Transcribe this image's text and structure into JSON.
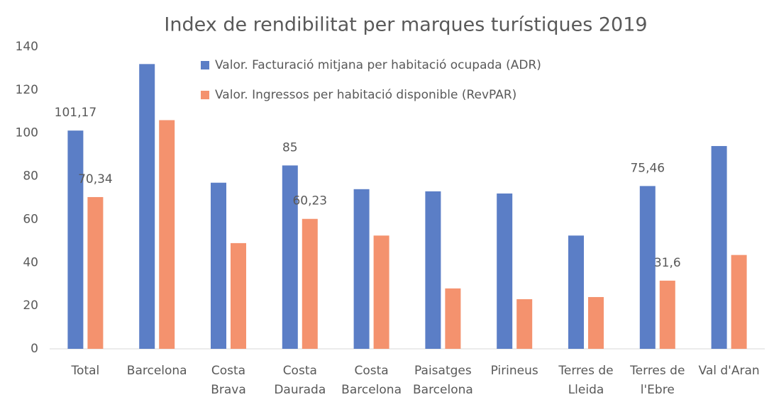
{
  "chart_data": {
    "type": "bar",
    "title": "Index de rendibilitat per marques turístiques 2019",
    "categories": [
      [
        "Total"
      ],
      [
        "Barcelona"
      ],
      [
        "Costa",
        "Brava"
      ],
      [
        "Costa",
        "Daurada"
      ],
      [
        "Costa",
        "Barcelona"
      ],
      [
        "Paisatges",
        "Barcelona"
      ],
      [
        "Pirineus"
      ],
      [
        "Terres de",
        "Lleida"
      ],
      [
        "Terres de",
        "l'Ebre"
      ],
      [
        "Val d'Aran"
      ]
    ],
    "series": [
      {
        "name": "Valor. Facturació mitjana per habitació ocupada (ADR)",
        "color": "#5b7ec6",
        "values": [
          101.17,
          132,
          77,
          85,
          74,
          73,
          72,
          52.5,
          75.46,
          94
        ],
        "value_labels": [
          "101,17",
          null,
          null,
          "85",
          null,
          null,
          null,
          null,
          "75,46",
          null
        ]
      },
      {
        "name": "Valor. Ingressos per habitació disponible (RevPAR)",
        "color": "#f4926e",
        "values": [
          70.34,
          106,
          49,
          60.23,
          52.5,
          28,
          23,
          24,
          31.6,
          43.5
        ],
        "value_labels": [
          "70,34",
          null,
          null,
          "60,23",
          null,
          null,
          null,
          null,
          "31,6",
          null
        ]
      }
    ],
    "ylim": [
      0,
      140
    ],
    "yticks": [
      0,
      20,
      40,
      60,
      80,
      100,
      120,
      140
    ],
    "grid": false
  }
}
